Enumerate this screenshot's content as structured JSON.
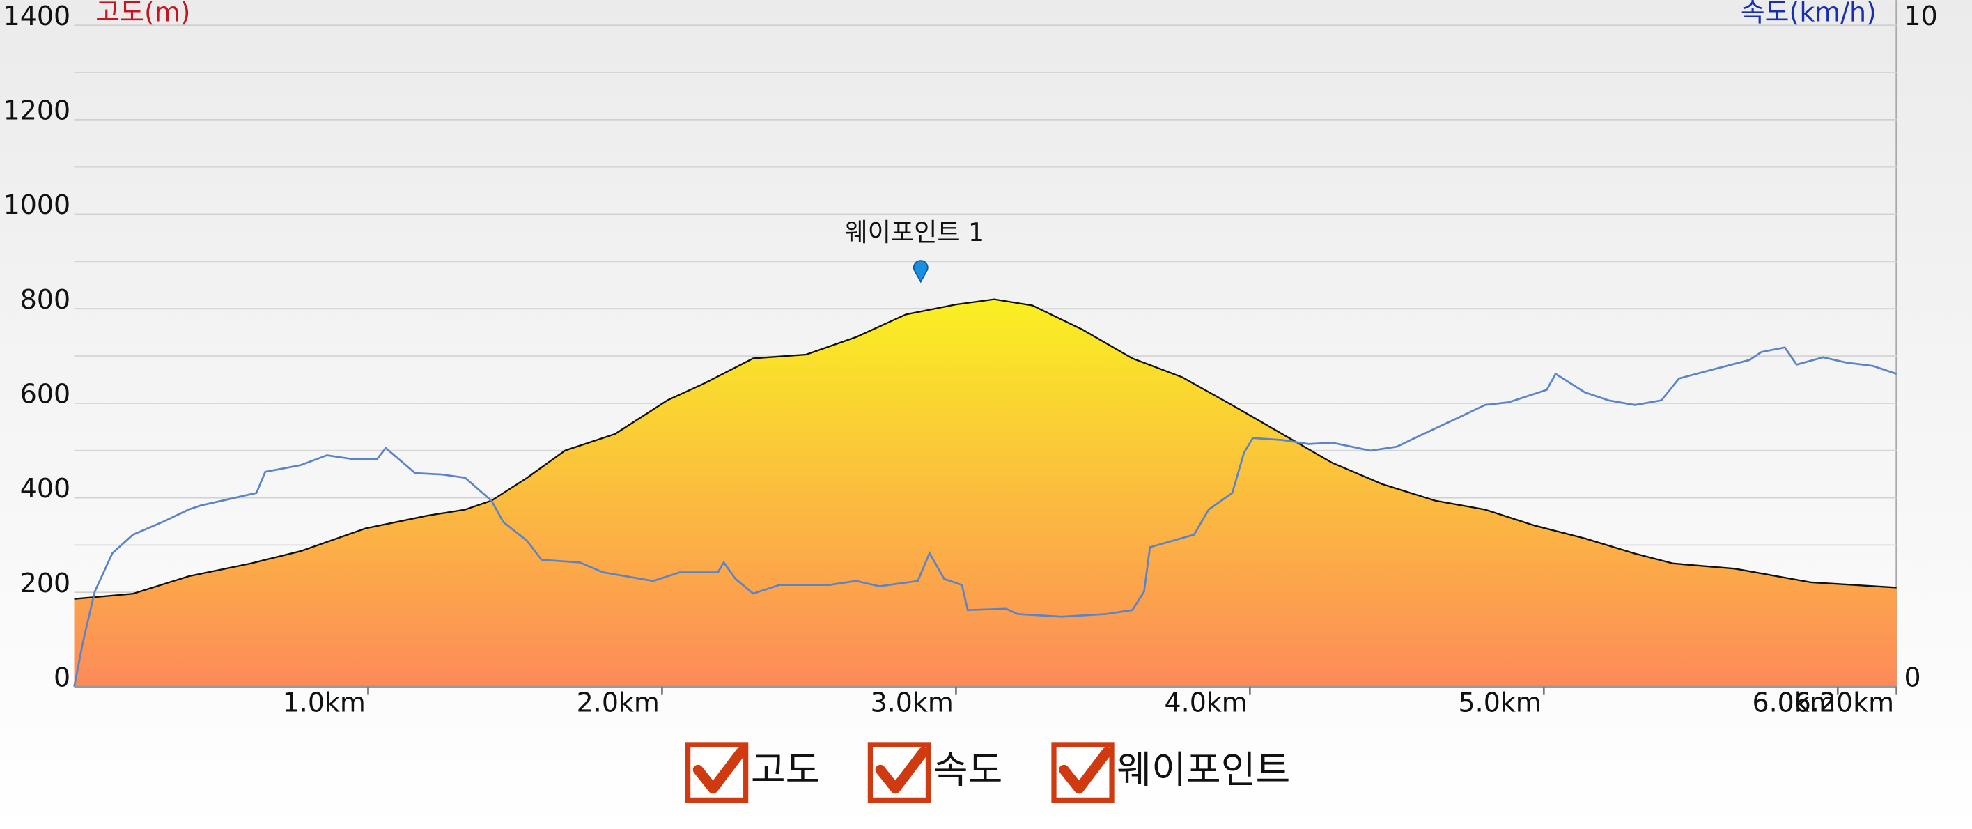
{
  "chart_data": {
    "type": "elevation-speed",
    "y_label": "고도(m)",
    "y2_label": "속도(km/h)",
    "xlim": [
      0,
      6.2
    ],
    "xticks": [
      {
        "value": 1,
        "label": "1.0km"
      },
      {
        "value": 2,
        "label": "2.0km"
      },
      {
        "value": 3,
        "label": "3.0km"
      },
      {
        "value": 4,
        "label": "4.0km"
      },
      {
        "value": 5,
        "label": "5.0km"
      },
      {
        "value": 6,
        "label": "6.0km"
      },
      {
        "value": 6.2,
        "label": "6.20km"
      }
    ],
    "ylim": [
      0,
      1400
    ],
    "yticks": [
      0,
      200,
      400,
      600,
      800,
      1000,
      1200,
      1400
    ],
    "minor_yticks": [
      100,
      300,
      500,
      700,
      900,
      1100,
      1300
    ],
    "y2lim": [
      0,
      10
    ],
    "y2ticks": [
      0,
      10
    ],
    "grid": true,
    "series": [
      {
        "name": "고도",
        "kind": "area",
        "colors": [
          "#f9f022",
          "#fd8a5a"
        ],
        "stroke": "#111111",
        "x": [
          0,
          0.2,
          0.39,
          0.6,
          0.77,
          0.99,
          1.2,
          1.33,
          1.42,
          1.54,
          1.67,
          1.84,
          2.02,
          2.14,
          2.31,
          2.49,
          2.66,
          2.83,
          3.0,
          3.13,
          3.26,
          3.43,
          3.6,
          3.77,
          3.94,
          4.11,
          4.28,
          4.45,
          4.63,
          4.8,
          4.97,
          5.14,
          5.31,
          5.44,
          5.65,
          5.91,
          6.2
        ],
        "values": [
          186,
          197,
          234,
          261,
          287,
          335,
          362,
          375,
          394,
          442,
          500,
          535,
          607,
          641,
          695,
          703,
          740,
          788,
          809,
          820,
          807,
          756,
          695,
          655,
          596,
          535,
          474,
          429,
          394,
          375,
          341,
          314,
          282,
          261,
          250,
          221,
          210
        ]
      },
      {
        "name": "속도",
        "kind": "line",
        "axis": "y2",
        "color": "#5b84c8",
        "x": [
          0,
          0.03,
          0.07,
          0.13,
          0.2,
          0.3,
          0.39,
          0.43,
          0.52,
          0.62,
          0.65,
          0.77,
          0.86,
          0.95,
          1.03,
          1.06,
          1.16,
          1.25,
          1.33,
          1.42,
          1.46,
          1.54,
          1.59,
          1.72,
          1.8,
          1.97,
          2.06,
          2.19,
          2.21,
          2.25,
          2.31,
          2.4,
          2.57,
          2.66,
          2.74,
          2.87,
          2.91,
          2.96,
          3.02,
          3.04,
          3.17,
          3.21,
          3.36,
          3.51,
          3.6,
          3.64,
          3.66,
          3.81,
          3.86,
          3.94,
          3.98,
          4.01,
          4.11,
          4.2,
          4.28,
          4.41,
          4.5,
          4.58,
          4.71,
          4.8,
          4.88,
          5.01,
          5.04,
          5.14,
          5.22,
          5.31,
          5.4,
          5.46,
          5.57,
          5.7,
          5.74,
          5.82,
          5.86,
          5.95,
          6.03,
          6.12,
          6.2
        ],
        "values": [
          0,
          0.68,
          1.44,
          2.02,
          2.3,
          2.49,
          2.68,
          2.74,
          2.83,
          2.93,
          3.25,
          3.35,
          3.5,
          3.44,
          3.44,
          3.61,
          3.23,
          3.21,
          3.16,
          2.81,
          2.49,
          2.21,
          1.92,
          1.88,
          1.73,
          1.6,
          1.73,
          1.73,
          1.88,
          1.63,
          1.41,
          1.54,
          1.54,
          1.6,
          1.52,
          1.6,
          2.02,
          1.63,
          1.54,
          1.16,
          1.18,
          1.1,
          1.06,
          1.1,
          1.16,
          1.44,
          2.11,
          2.3,
          2.68,
          2.93,
          3.54,
          3.76,
          3.73,
          3.67,
          3.69,
          3.57,
          3.63,
          3.8,
          4.07,
          4.26,
          4.3,
          4.49,
          4.73,
          4.45,
          4.33,
          4.26,
          4.33,
          4.66,
          4.79,
          4.94,
          5.06,
          5.13,
          4.87,
          4.98,
          4.9,
          4.85,
          4.73
        ]
      }
    ],
    "waypoints": {
      "name": "웨이포인트",
      "color": "#1a8fe0",
      "points": [
        {
          "x": 2.88,
          "label": "웨이포인트 1"
        }
      ]
    },
    "legend_color": "#d03a10"
  }
}
